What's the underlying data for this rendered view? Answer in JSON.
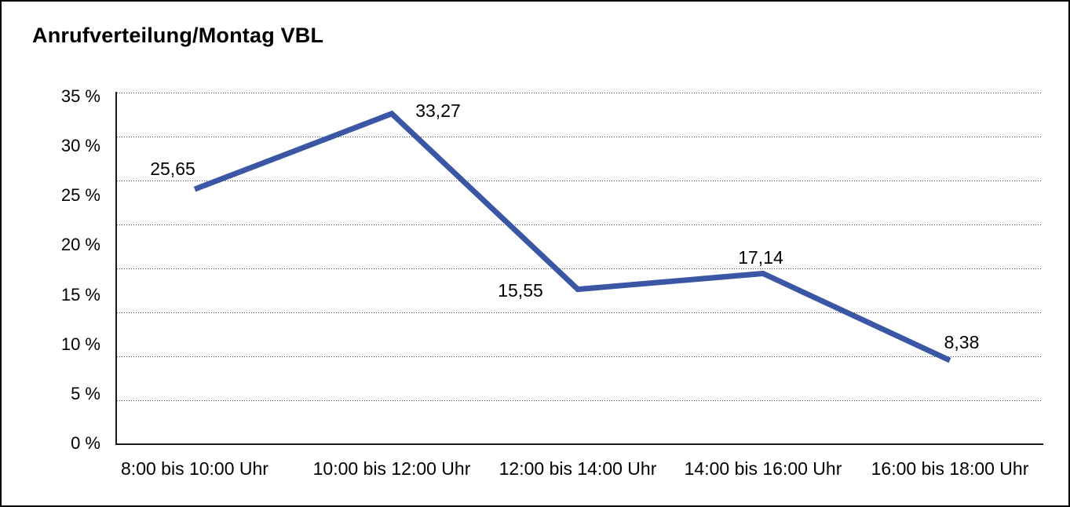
{
  "window": {
    "background_color": "#ffffff",
    "border_color": "#000000"
  },
  "chart_data": {
    "type": "line",
    "title": "Anrufverteilung/Montag VBL",
    "categories": [
      "8:00 bis 10:00 Uhr",
      "10:00 bis 12:00 Uhr",
      "12:00 bis 14:00 Uhr",
      "14:00 bis 16:00 Uhr",
      "16:00 bis 18:00 Uhr"
    ],
    "series": [
      {
        "name": "Anrufverteilung Montag VBL",
        "values": [
          25.65,
          33.27,
          15.55,
          17.14,
          8.38
        ],
        "value_labels": [
          "25,65",
          "33,27",
          "15,55",
          "17,14",
          "8,38"
        ],
        "color": "#3A56A4"
      }
    ],
    "xlabel": "",
    "ylabel": "",
    "ylim": [
      0,
      35
    ],
    "y_tick_labels": [
      "35 %",
      "30 %",
      "25 %",
      "20 %",
      "15 %",
      "10 %",
      "5 %",
      "0 %"
    ],
    "y_tick_step_percent": 5,
    "grid": "horizontal dotted",
    "legend": "none",
    "axis_color": "#1a1a1a",
    "text_color": "#000000"
  }
}
